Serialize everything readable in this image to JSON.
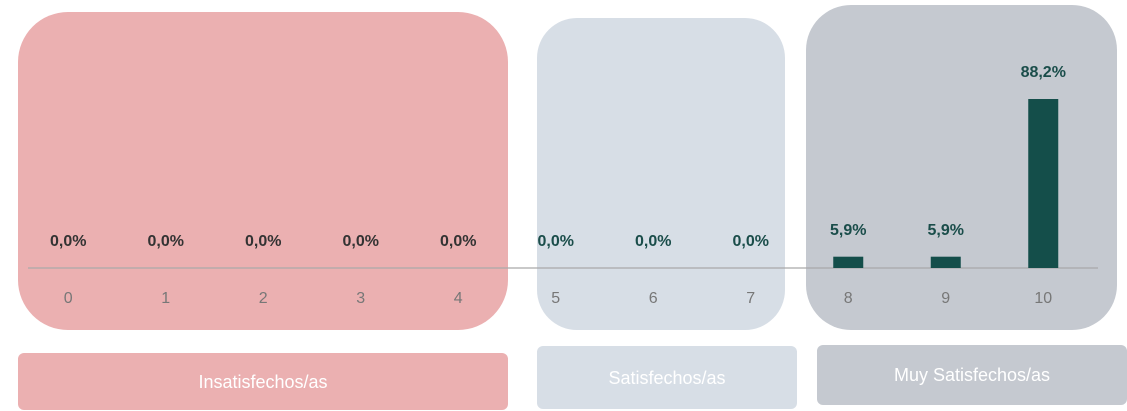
{
  "chart_data": {
    "type": "bar",
    "categories": [
      "0",
      "1",
      "2",
      "3",
      "4",
      "5",
      "6",
      "7",
      "8",
      "9",
      "10"
    ],
    "values": [
      0,
      0,
      0,
      0,
      0,
      0,
      0,
      0,
      5.9,
      5.9,
      88.2
    ],
    "value_labels": [
      "0,0%",
      "0,0%",
      "0,0%",
      "0,0%",
      "0,0%",
      "0,0%",
      "0,0%",
      "0,0%",
      "5,9%",
      "5,9%",
      "88,2%"
    ],
    "color": "#144e4a",
    "groups": [
      "Insatisfechos/as",
      "Satisfechos/as",
      "Muy Satisfechos/as"
    ]
  }
}
